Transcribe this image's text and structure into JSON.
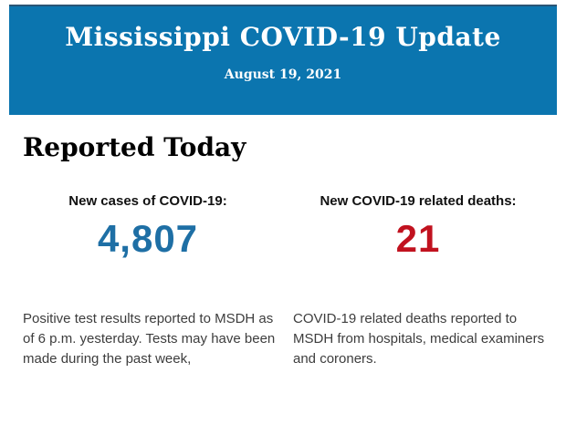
{
  "colors": {
    "header_bg": "#0b75af",
    "header_border_top": "#2a5576",
    "cases_value": "#1e6fa5",
    "deaths_value": "#c1121f"
  },
  "header": {
    "title": "Mississippi COVID-19 Update",
    "date": "August 19, 2021"
  },
  "main": {
    "heading": "Reported Today",
    "cases": {
      "label": "New cases of COVID-19:",
      "value": "4,807",
      "description": "Positive test results reported to MSDH as\nof 6 p.m. yesterday. Tests may have been\nmade during the past week,"
    },
    "deaths": {
      "label": "New COVID-19 related deaths:",
      "value": "21",
      "description": "COVID-19 related deaths reported to\nMSDH from hospitals, medical examiners\nand coroners."
    }
  }
}
